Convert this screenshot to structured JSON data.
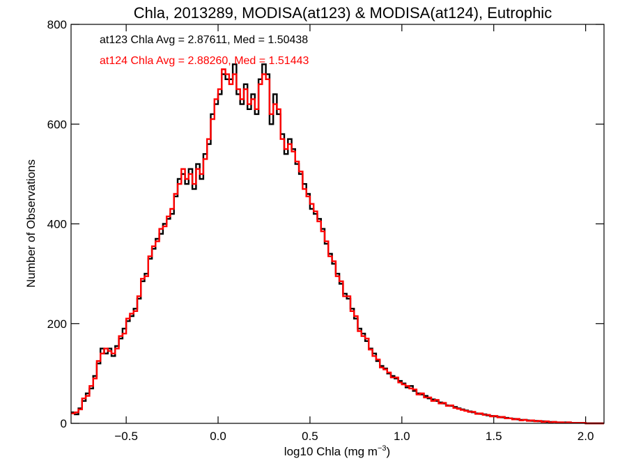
{
  "chart_data": {
    "type": "line",
    "title": "Chla, 2013289, MODISA(at123) & MODISA(at124), Eutrophic",
    "xlabel": "log10 Chla (mg m",
    "xlabel_superscript": "−3",
    "xlabel_suffix": ")",
    "ylabel": "Number of Observations",
    "xlim": [
      -0.8,
      2.1
    ],
    "ylim": [
      0,
      800
    ],
    "xticks": [
      -0.5,
      0.0,
      0.5,
      1.0,
      1.5,
      2.0
    ],
    "xtick_labels": [
      "−0.5",
      "0.0",
      "0.5",
      "1.0",
      "1.5",
      "2.0"
    ],
    "yticks": [
      0,
      200,
      400,
      600,
      800
    ],
    "ytick_labels": [
      "0",
      "200",
      "400",
      "600",
      "800"
    ],
    "legend": [
      {
        "text": "at123 Chla Avg = 2.87611, Med = 1.50438",
        "color": "#000000"
      },
      {
        "text": "at124 Chla Avg = 2.88260, Med = 1.51443",
        "color": "#ff0000"
      }
    ],
    "bin_width": 0.02,
    "series": [
      {
        "name": "at123",
        "color": "#000000",
        "x": [
          -0.8,
          -0.78,
          -0.76,
          -0.74,
          -0.72,
          -0.7,
          -0.68,
          -0.66,
          -0.64,
          -0.62,
          -0.6,
          -0.58,
          -0.56,
          -0.54,
          -0.52,
          -0.5,
          -0.48,
          -0.46,
          -0.44,
          -0.42,
          -0.4,
          -0.38,
          -0.36,
          -0.34,
          -0.32,
          -0.3,
          -0.28,
          -0.26,
          -0.24,
          -0.22,
          -0.2,
          -0.18,
          -0.16,
          -0.14,
          -0.12,
          -0.1,
          -0.08,
          -0.06,
          -0.04,
          -0.02,
          0.0,
          0.02,
          0.04,
          0.06,
          0.08,
          0.1,
          0.12,
          0.14,
          0.16,
          0.18,
          0.2,
          0.22,
          0.24,
          0.26,
          0.28,
          0.3,
          0.32,
          0.34,
          0.36,
          0.38,
          0.4,
          0.42,
          0.44,
          0.46,
          0.48,
          0.5,
          0.52,
          0.54,
          0.56,
          0.58,
          0.6,
          0.62,
          0.64,
          0.66,
          0.68,
          0.7,
          0.72,
          0.74,
          0.76,
          0.78,
          0.8,
          0.82,
          0.84,
          0.86,
          0.88,
          0.9,
          0.92,
          0.94,
          0.96,
          0.98,
          1.0,
          1.02,
          1.04,
          1.06,
          1.08,
          1.1,
          1.12,
          1.14,
          1.16,
          1.18,
          1.2,
          1.22,
          1.24,
          1.26,
          1.28,
          1.3,
          1.32,
          1.34,
          1.36,
          1.38,
          1.4,
          1.42,
          1.44,
          1.46,
          1.48,
          1.5,
          1.52,
          1.54,
          1.56,
          1.58,
          1.6,
          1.62,
          1.64,
          1.66,
          1.68,
          1.7,
          1.72,
          1.74,
          1.76,
          1.78,
          1.8,
          1.82,
          1.84,
          1.86,
          1.88,
          1.9,
          1.92,
          1.94,
          1.96,
          1.98,
          2.0,
          2.02,
          2.04,
          2.06,
          2.08
        ],
        "y": [
          22,
          18,
          30,
          45,
          60,
          70,
          95,
          120,
          150,
          140,
          150,
          135,
          155,
          170,
          190,
          205,
          215,
          230,
          250,
          285,
          300,
          330,
          350,
          370,
          380,
          400,
          410,
          420,
          455,
          490,
          500,
          480,
          510,
          470,
          520,
          490,
          540,
          560,
          620,
          640,
          660,
          700,
          690,
          690,
          720,
          660,
          640,
          680,
          630,
          660,
          620,
          690,
          720,
          700,
          600,
          660,
          620,
          580,
          540,
          570,
          550,
          520,
          500,
          480,
          460,
          430,
          420,
          410,
          390,
          360,
          340,
          320,
          300,
          280,
          260,
          250,
          230,
          210,
          190,
          180,
          165,
          150,
          140,
          125,
          115,
          110,
          100,
          95,
          90,
          85,
          80,
          72,
          75,
          65,
          60,
          58,
          55,
          50,
          48,
          45,
          42,
          40,
          36,
          35,
          33,
          30,
          28,
          26,
          24,
          22,
          20,
          19,
          18,
          16,
          15,
          14,
          13,
          12,
          11,
          10,
          9,
          8,
          7,
          7,
          6,
          5,
          5,
          4,
          4,
          3,
          3,
          3,
          2,
          2,
          2,
          2,
          1,
          1,
          1,
          1,
          0,
          0,
          0,
          0,
          0
        ]
      },
      {
        "name": "at124",
        "color": "#ff0000",
        "x": [
          -0.8,
          -0.78,
          -0.76,
          -0.74,
          -0.72,
          -0.7,
          -0.68,
          -0.66,
          -0.64,
          -0.62,
          -0.6,
          -0.58,
          -0.56,
          -0.54,
          -0.52,
          -0.5,
          -0.48,
          -0.46,
          -0.44,
          -0.42,
          -0.4,
          -0.38,
          -0.36,
          -0.34,
          -0.32,
          -0.3,
          -0.28,
          -0.26,
          -0.24,
          -0.22,
          -0.2,
          -0.18,
          -0.16,
          -0.14,
          -0.12,
          -0.1,
          -0.08,
          -0.06,
          -0.04,
          -0.02,
          0.0,
          0.02,
          0.04,
          0.06,
          0.08,
          0.1,
          0.12,
          0.14,
          0.16,
          0.18,
          0.2,
          0.22,
          0.24,
          0.26,
          0.28,
          0.3,
          0.32,
          0.34,
          0.36,
          0.38,
          0.4,
          0.42,
          0.44,
          0.46,
          0.48,
          0.5,
          0.52,
          0.54,
          0.56,
          0.58,
          0.6,
          0.62,
          0.64,
          0.66,
          0.68,
          0.7,
          0.72,
          0.74,
          0.76,
          0.78,
          0.8,
          0.82,
          0.84,
          0.86,
          0.88,
          0.9,
          0.92,
          0.94,
          0.96,
          0.98,
          1.0,
          1.02,
          1.04,
          1.06,
          1.08,
          1.1,
          1.12,
          1.14,
          1.16,
          1.18,
          1.2,
          1.22,
          1.24,
          1.26,
          1.28,
          1.3,
          1.32,
          1.34,
          1.36,
          1.38,
          1.4,
          1.42,
          1.44,
          1.46,
          1.48,
          1.5,
          1.52,
          1.54,
          1.56,
          1.58,
          1.6,
          1.62,
          1.64,
          1.66,
          1.68,
          1.7,
          1.72,
          1.74,
          1.76,
          1.78,
          1.8,
          1.82,
          1.84,
          1.86,
          1.88,
          1.9,
          1.92,
          1.94,
          1.96,
          1.98,
          2.0,
          2.02,
          2.04,
          2.06,
          2.08
        ],
        "y": [
          20,
          22,
          28,
          50,
          55,
          75,
          90,
          125,
          140,
          150,
          145,
          140,
          150,
          175,
          180,
          210,
          220,
          225,
          255,
          290,
          295,
          335,
          355,
          365,
          390,
          395,
          415,
          430,
          460,
          480,
          510,
          490,
          500,
          480,
          510,
          500,
          530,
          570,
          610,
          650,
          670,
          710,
          700,
          680,
          700,
          670,
          650,
          670,
          640,
          650,
          630,
          680,
          700,
          690,
          620,
          640,
          630,
          570,
          550,
          560,
          545,
          525,
          505,
          470,
          455,
          440,
          425,
          405,
          385,
          365,
          335,
          325,
          295,
          285,
          255,
          255,
          225,
          215,
          185,
          175,
          170,
          148,
          135,
          128,
          112,
          108,
          102,
          92,
          92,
          82,
          78,
          75,
          70,
          68,
          58,
          60,
          52,
          52,
          45,
          47,
          40,
          41,
          35,
          36,
          31,
          29,
          27,
          25,
          23,
          23,
          19,
          20,
          17,
          17,
          14,
          15,
          12,
          13,
          10,
          10,
          8,
          9,
          6,
          7,
          5,
          6,
          4,
          5,
          3,
          4,
          2,
          3,
          2,
          2,
          1,
          2,
          1,
          1,
          1,
          1,
          0,
          0,
          0,
          0,
          0
        ]
      }
    ]
  }
}
